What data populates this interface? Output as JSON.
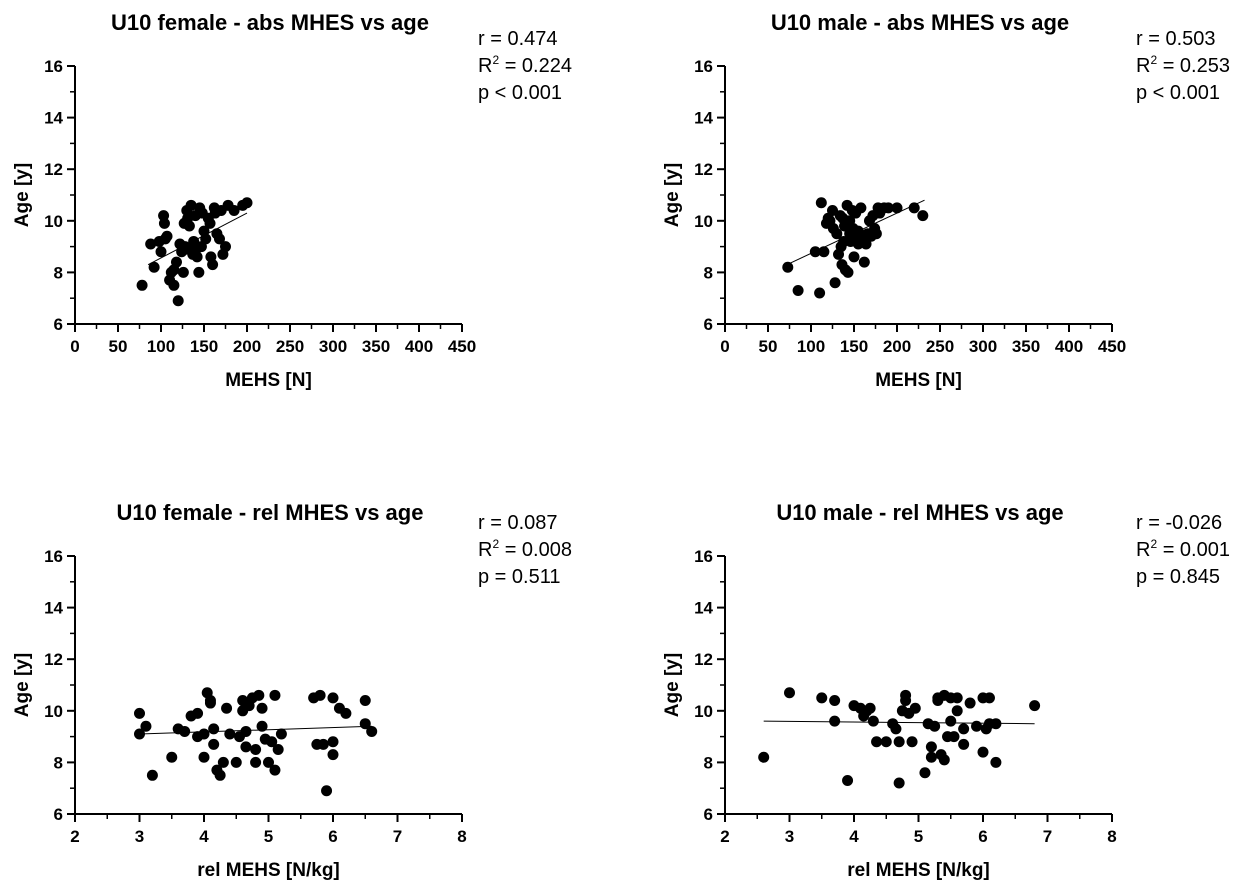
{
  "chart_data": [
    {
      "type": "scatter",
      "title": "U10 female - abs MHES vs age",
      "xlabel": "MEHS [N]",
      "ylabel": "Age [y]",
      "xlim": [
        0,
        450
      ],
      "ylim": [
        6,
        16
      ],
      "xticks": [
        "0",
        "50",
        "100",
        "150",
        "200",
        "250",
        "300",
        "350",
        "400",
        "450"
      ],
      "yticks": [
        "6",
        "8",
        "10",
        "12",
        "14",
        "16"
      ],
      "stats": {
        "r": "r = 0.474",
        "r2_prefix": "R",
        "r2_sup": "2",
        "r2_value": " = 0.224",
        "p": "p < 0.001"
      },
      "trendline": {
        "x": [
          85,
          200
        ],
        "y": [
          8.3,
          10.3
        ]
      },
      "points": [
        [
          78,
          7.5
        ],
        [
          88,
          9.1
        ],
        [
          92,
          8.2
        ],
        [
          100,
          8.8
        ],
        [
          103,
          10.2
        ],
        [
          104,
          9.9
        ],
        [
          105,
          9.3
        ],
        [
          107,
          9.4
        ],
        [
          110,
          7.7
        ],
        [
          112,
          8.0
        ],
        [
          115,
          7.5
        ],
        [
          118,
          8.4
        ],
        [
          120,
          6.9
        ],
        [
          122,
          9.1
        ],
        [
          124,
          8.8
        ],
        [
          126,
          8.0
        ],
        [
          128,
          9.0
        ],
        [
          130,
          10.4
        ],
        [
          131,
          10.1
        ],
        [
          133,
          9.8
        ],
        [
          135,
          10.6
        ],
        [
          136,
          9.0
        ],
        [
          137,
          8.7
        ],
        [
          138,
          9.2
        ],
        [
          140,
          10.2
        ],
        [
          141,
          8.9
        ],
        [
          142,
          8.6
        ],
        [
          144,
          8.0
        ],
        [
          145,
          10.5
        ],
        [
          147,
          9.0
        ],
        [
          150,
          9.6
        ],
        [
          152,
          9.3
        ],
        [
          155,
          10.1
        ],
        [
          157,
          9.9
        ],
        [
          158,
          8.6
        ],
        [
          160,
          8.3
        ],
        [
          162,
          10.5
        ],
        [
          163,
          10.3
        ],
        [
          165,
          9.5
        ],
        [
          168,
          9.3
        ],
        [
          170,
          10.4
        ],
        [
          172,
          8.7
        ],
        [
          175,
          9.0
        ],
        [
          178,
          10.6
        ],
        [
          185,
          10.4
        ],
        [
          195,
          10.6
        ],
        [
          200,
          10.7
        ],
        [
          115,
          8.1
        ],
        [
          130,
          8.9
        ],
        [
          148,
          10.3
        ],
        [
          127,
          9.9
        ],
        [
          98,
          9.2
        ]
      ]
    },
    {
      "type": "scatter",
      "title": "U10 male - abs MHES vs age",
      "xlabel": "MEHS [N]",
      "ylabel": "Age [y]",
      "xlim": [
        0,
        450
      ],
      "ylim": [
        6,
        16
      ],
      "xticks": [
        "0",
        "50",
        "100",
        "150",
        "200",
        "250",
        "300",
        "350",
        "400",
        "450"
      ],
      "yticks": [
        "6",
        "8",
        "10",
        "12",
        "14",
        "16"
      ],
      "stats": {
        "r": "r = 0.503",
        "r2_prefix": "R",
        "r2_sup": "2",
        "r2_value": " = 0.253",
        "p": "p < 0.001"
      },
      "trendline": {
        "x": [
          72,
          232
        ],
        "y": [
          8.3,
          10.8
        ]
      },
      "points": [
        [
          73,
          8.2
        ],
        [
          85,
          7.3
        ],
        [
          105,
          8.8
        ],
        [
          110,
          7.2
        ],
        [
          112,
          10.7
        ],
        [
          115,
          8.8
        ],
        [
          118,
          9.9
        ],
        [
          120,
          10.1
        ],
        [
          122,
          10.0
        ],
        [
          125,
          10.4
        ],
        [
          126,
          9.7
        ],
        [
          128,
          7.6
        ],
        [
          130,
          9.5
        ],
        [
          132,
          8.7
        ],
        [
          134,
          10.2
        ],
        [
          135,
          9.0
        ],
        [
          136,
          8.3
        ],
        [
          137,
          10.1
        ],
        [
          139,
          9.8
        ],
        [
          140,
          8.1
        ],
        [
          142,
          10.6
        ],
        [
          143,
          8.0
        ],
        [
          145,
          9.5
        ],
        [
          146,
          9.2
        ],
        [
          148,
          10.4
        ],
        [
          149,
          9.7
        ],
        [
          150,
          8.6
        ],
        [
          152,
          10.3
        ],
        [
          153,
          9.4
        ],
        [
          155,
          9.6
        ],
        [
          158,
          10.5
        ],
        [
          160,
          9.3
        ],
        [
          162,
          8.4
        ],
        [
          164,
          9.1
        ],
        [
          166,
          9.5
        ],
        [
          168,
          10.0
        ],
        [
          170,
          9.4
        ],
        [
          172,
          10.2
        ],
        [
          174,
          9.7
        ],
        [
          176,
          9.5
        ],
        [
          178,
          10.5
        ],
        [
          180,
          10.3
        ],
        [
          185,
          10.5
        ],
        [
          190,
          10.5
        ],
        [
          200,
          10.5
        ],
        [
          220,
          10.5
        ],
        [
          230,
          10.2
        ],
        [
          155,
          9.1
        ],
        [
          145,
          10.0
        ],
        [
          138,
          9.2
        ]
      ]
    },
    {
      "type": "scatter",
      "title": "U10 female - rel MHES vs age",
      "xlabel": "rel MEHS [N/kg]",
      "ylabel": "Age [y]",
      "xlim": [
        2,
        8
      ],
      "ylim": [
        6,
        16
      ],
      "xticks": [
        "2",
        "3",
        "4",
        "5",
        "6",
        "7",
        "8"
      ],
      "yticks": [
        "6",
        "8",
        "10",
        "12",
        "14",
        "16"
      ],
      "stats": {
        "r": "r = 0.087",
        "r2_prefix": "R",
        "r2_sup": "2",
        "r2_value": " = 0.008",
        "p": "p = 0.511"
      },
      "trendline": {
        "x": [
          3.0,
          6.6
        ],
        "y": [
          9.1,
          9.4
        ]
      },
      "points": [
        [
          3.0,
          9.9
        ],
        [
          3.0,
          9.1
        ],
        [
          3.1,
          9.4
        ],
        [
          3.2,
          7.5
        ],
        [
          3.5,
          8.2
        ],
        [
          3.6,
          9.3
        ],
        [
          3.7,
          9.2
        ],
        [
          3.8,
          9.8
        ],
        [
          3.9,
          9.9
        ],
        [
          3.9,
          9.0
        ],
        [
          4.0,
          8.2
        ],
        [
          4.0,
          9.1
        ],
        [
          4.05,
          10.7
        ],
        [
          4.1,
          10.3
        ],
        [
          4.1,
          10.4
        ],
        [
          4.15,
          9.3
        ],
        [
          4.15,
          8.7
        ],
        [
          4.2,
          7.7
        ],
        [
          4.25,
          7.5
        ],
        [
          4.3,
          8.0
        ],
        [
          4.35,
          10.1
        ],
        [
          4.4,
          9.1
        ],
        [
          4.5,
          8.0
        ],
        [
          4.55,
          9.0
        ],
        [
          4.6,
          10.4
        ],
        [
          4.6,
          10.0
        ],
        [
          4.65,
          9.2
        ],
        [
          4.65,
          8.6
        ],
        [
          4.7,
          10.2
        ],
        [
          4.75,
          10.5
        ],
        [
          4.8,
          8.5
        ],
        [
          4.8,
          8.0
        ],
        [
          4.85,
          10.6
        ],
        [
          4.9,
          9.4
        ],
        [
          4.9,
          10.1
        ],
        [
          4.95,
          8.9
        ],
        [
          5.0,
          8.0
        ],
        [
          5.05,
          8.8
        ],
        [
          5.1,
          7.7
        ],
        [
          5.1,
          10.6
        ],
        [
          5.15,
          8.5
        ],
        [
          5.2,
          9.1
        ],
        [
          5.7,
          10.5
        ],
        [
          5.75,
          8.7
        ],
        [
          5.8,
          10.6
        ],
        [
          5.85,
          8.7
        ],
        [
          5.9,
          6.9
        ],
        [
          6.0,
          8.8
        ],
        [
          6.0,
          8.3
        ],
        [
          6.0,
          10.5
        ],
        [
          6.1,
          10.1
        ],
        [
          6.2,
          9.9
        ],
        [
          6.5,
          10.4
        ],
        [
          6.5,
          9.5
        ],
        [
          6.6,
          9.2
        ]
      ]
    },
    {
      "type": "scatter",
      "title": "U10 male - rel MHES vs age",
      "xlabel": "rel MEHS [N/kg]",
      "ylabel": "Age [y]",
      "xlim": [
        2,
        8
      ],
      "ylim": [
        6,
        16
      ],
      "xticks": [
        "2",
        "3",
        "4",
        "5",
        "6",
        "7",
        "8"
      ],
      "yticks": [
        "6",
        "8",
        "10",
        "12",
        "14",
        "16"
      ],
      "stats": {
        "r": "r = -0.026",
        "r2_prefix": "R",
        "r2_sup": "2",
        "r2_value": " = 0.001",
        "p": "p = 0.845"
      },
      "trendline": {
        "x": [
          2.6,
          6.8
        ],
        "y": [
          9.6,
          9.5
        ]
      },
      "points": [
        [
          2.6,
          8.2
        ],
        [
          3.0,
          10.7
        ],
        [
          3.5,
          10.5
        ],
        [
          3.7,
          10.4
        ],
        [
          3.7,
          9.6
        ],
        [
          3.9,
          7.3
        ],
        [
          4.0,
          10.2
        ],
        [
          4.1,
          10.1
        ],
        [
          4.15,
          9.8
        ],
        [
          4.2,
          10.0
        ],
        [
          4.25,
          10.1
        ],
        [
          4.3,
          9.6
        ],
        [
          4.35,
          8.8
        ],
        [
          4.5,
          8.8
        ],
        [
          4.6,
          9.5
        ],
        [
          4.65,
          9.3
        ],
        [
          4.7,
          8.8
        ],
        [
          4.7,
          7.2
        ],
        [
          4.75,
          10.0
        ],
        [
          4.8,
          10.4
        ],
        [
          4.8,
          10.6
        ],
        [
          4.85,
          9.9
        ],
        [
          4.9,
          8.8
        ],
        [
          4.95,
          10.1
        ],
        [
          5.1,
          7.6
        ],
        [
          5.15,
          9.5
        ],
        [
          5.2,
          8.6
        ],
        [
          5.2,
          8.2
        ],
        [
          5.25,
          9.4
        ],
        [
          5.3,
          10.5
        ],
        [
          5.3,
          10.4
        ],
        [
          5.35,
          8.3
        ],
        [
          5.4,
          8.1
        ],
        [
          5.4,
          10.6
        ],
        [
          5.45,
          9.0
        ],
        [
          5.5,
          10.5
        ],
        [
          5.5,
          9.6
        ],
        [
          5.55,
          9.0
        ],
        [
          5.6,
          10.5
        ],
        [
          5.6,
          10.0
        ],
        [
          5.7,
          8.7
        ],
        [
          5.7,
          9.3
        ],
        [
          5.8,
          10.3
        ],
        [
          5.9,
          9.4
        ],
        [
          6.0,
          10.5
        ],
        [
          6.0,
          8.4
        ],
        [
          6.05,
          9.3
        ],
        [
          6.1,
          10.5
        ],
        [
          6.1,
          9.5
        ],
        [
          6.2,
          8.0
        ],
        [
          6.2,
          9.5
        ],
        [
          6.8,
          10.2
        ]
      ]
    }
  ]
}
